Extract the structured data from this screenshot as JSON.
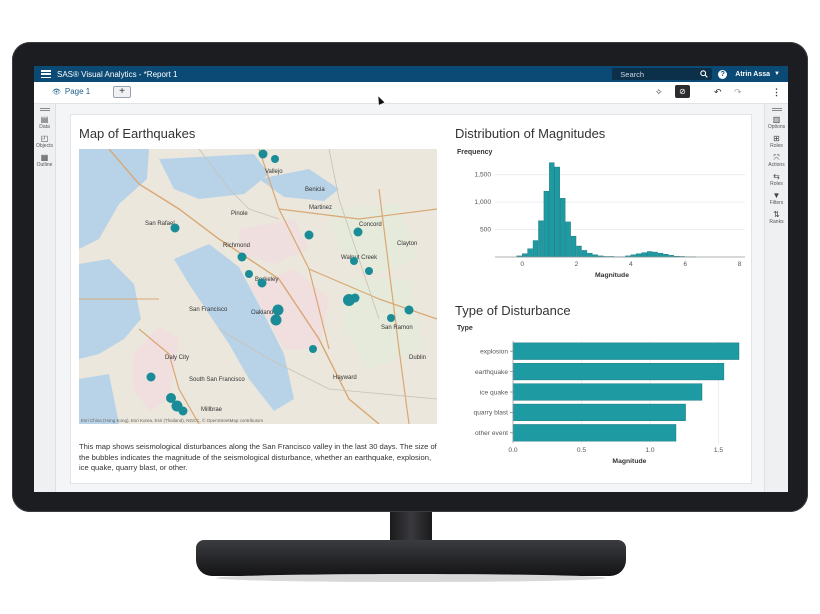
{
  "app": {
    "title": "SAS® Visual Analytics - *Report 1",
    "search_placeholder": "Search",
    "help_icon": "?",
    "user": "Atrin Assa"
  },
  "toolbar": {
    "page_tab": "Page 1",
    "add_label": "+"
  },
  "left_panel": [
    {
      "label": "Data",
      "icon": "database-icon"
    },
    {
      "label": "Objects",
      "icon": "objects-icon"
    },
    {
      "label": "Outline",
      "icon": "outline-icon"
    }
  ],
  "right_panel": [
    {
      "label": "Options",
      "icon": "options-icon"
    },
    {
      "label": "Roles",
      "icon": "roles-icon"
    },
    {
      "label": "Actions",
      "icon": "actions-icon"
    },
    {
      "label": "Roles",
      "icon": "roles-icon"
    },
    {
      "label": "Filters",
      "icon": "filter-icon"
    },
    {
      "label": "Ranks",
      "icon": "ranks-icon"
    }
  ],
  "map": {
    "title": "Map of Earthquakes",
    "description": "This map shows seismological disturbances along the San Francisco valley in the last 30 days. The size of the bubbles indicates the magnitude of the seismological disturbance, whether an earthquake, explosion, ice quake, quarry blast, or other.",
    "attribution": "Esri China (Hong Kong), Esri Korea, Esri (Thailand), NGCC, © OpenStreetMap contributors",
    "place_labels": [
      "Vallejo",
      "Benicia",
      "San Rafael",
      "Pinole",
      "Martinez",
      "Concord",
      "Richmond",
      "Walnut Creek",
      "Clayton",
      "Berkeley",
      "Oakland",
      "San Francisco",
      "San Ramon",
      "Daly City",
      "South San Francisco",
      "Hayward",
      "Dublin",
      "Millbrae"
    ],
    "bubble_color": "#1a8c97"
  },
  "chart_data": [
    {
      "type": "bar",
      "title": "Distribution of Magnitudes",
      "ylabel": "Frequency",
      "xlabel": "Magnitude",
      "xlim": [
        -1,
        8.2
      ],
      "ylim": [
        0,
        1750
      ],
      "xticks": [
        0,
        2,
        4,
        6,
        8
      ],
      "yticks": [
        500,
        1000,
        1500
      ],
      "ytick_labels": [
        "500",
        "1,000",
        "1,500"
      ],
      "bin_width": 0.2,
      "bins_start": [
        -0.2,
        0.0,
        0.2,
        0.4,
        0.6,
        0.8,
        1.0,
        1.2,
        1.4,
        1.6,
        1.8,
        2.0,
        2.2,
        2.4,
        2.6,
        2.8,
        3.0,
        3.2,
        3.4,
        3.6,
        3.8,
        4.0,
        4.2,
        4.4,
        4.6,
        4.8,
        5.0,
        5.2,
        5.4,
        5.6,
        5.8,
        6.0,
        6.2
      ],
      "values": [
        20,
        60,
        150,
        300,
        660,
        1200,
        1720,
        1640,
        1070,
        640,
        380,
        200,
        120,
        70,
        40,
        20,
        10,
        10,
        5,
        5,
        20,
        40,
        60,
        80,
        100,
        90,
        70,
        50,
        30,
        15,
        10,
        5,
        5
      ],
      "color": "#1e9aa3"
    },
    {
      "type": "bar",
      "orientation": "horizontal",
      "title": "Type of Disturbance",
      "ylabel": "Type",
      "xlabel": "Magnitude",
      "categories": [
        "explosion",
        "earthquake",
        "ice quake",
        "quarry blast",
        "other event"
      ],
      "values": [
        1.65,
        1.54,
        1.38,
        1.26,
        1.19
      ],
      "xlim": [
        0,
        1.65
      ],
      "xticks": [
        0.0,
        0.5,
        1.0,
        1.5
      ],
      "xtick_labels": [
        "0.0",
        "0.5",
        "1.0",
        "1.5"
      ],
      "color": "#1e9aa3"
    }
  ]
}
